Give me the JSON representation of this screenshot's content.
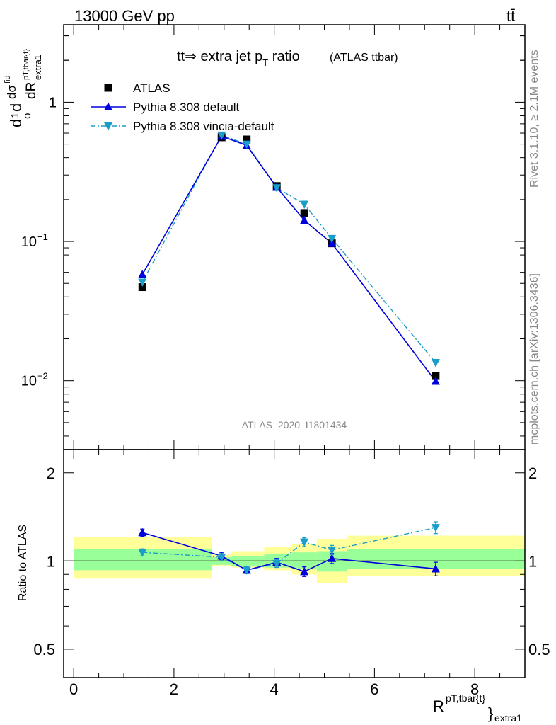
{
  "header": {
    "energy_label": "13000 GeV pp",
    "process_label": "tt̄"
  },
  "side_labels": {
    "rivet": "Rivet 3.1.10, ≥ 2.1M events",
    "mcplots": "mcplots.cern.ch [arXiv:1306.3436]"
  },
  "main_plot": {
    "title": "tt̄→ extra jet pT ratio",
    "title_parts": {
      "pre": "tt",
      "arrow": "⇒",
      "mid": " extra jet p",
      "sub": "T",
      "post": " ratio"
    },
    "subtitle": "(ATLAS ttbar)",
    "ylabel_parts": {
      "num": "1",
      "den": "σ",
      "d": "d",
      "dsigma": "dσ",
      "fid": "fid",
      "dR": "dR",
      "sup": "pT,tbar{t}",
      "sub": "extra1"
    },
    "watermark": "ATLAS_2020_I1801434",
    "ytick_labels": {
      "1": "1",
      "e-1_base": "10",
      "e-1_exp": "−1",
      "e-2_base": "10",
      "e-2_exp": "−2"
    }
  },
  "ratio_plot": {
    "ylabel": "Ratio to ATLAS",
    "ytick_labels": {
      "left": [
        "2",
        "1",
        "0.5"
      ],
      "right": [
        "2",
        "1",
        "0.5"
      ]
    }
  },
  "x_axis": {
    "tick_labels": [
      "0",
      "2",
      "4",
      "6",
      "8"
    ],
    "label_main": "R",
    "label_sup": "pT,tbar{t}",
    "label_brace": "}",
    "label_sub": "extra1"
  },
  "legend": [
    {
      "name": "ATLAS",
      "color": "#000000",
      "marker": "square"
    },
    {
      "name": "Pythia 8.308 default",
      "color": "#0000dd",
      "marker": "triangle-up"
    },
    {
      "name": "Pythia 8.308 vincia-default",
      "color": "#1a9dc8",
      "marker": "triangle-down"
    }
  ],
  "chart_data": {
    "type": "scatter",
    "x_range": [
      -0.2,
      9.0
    ],
    "main_ylim": [
      0.0032,
      3.6
    ],
    "main_log_y": true,
    "ratio_ylim": [
      0.4,
      2.4
    ],
    "ratio_log_y": true,
    "bins": [
      {
        "xlo": 0.0,
        "xhi": 2.75
      },
      {
        "xlo": 2.75,
        "xhi": 3.15
      },
      {
        "xlo": 3.15,
        "xhi": 3.8
      },
      {
        "xlo": 3.8,
        "xhi": 4.35
      },
      {
        "xlo": 4.35,
        "xhi": 4.85
      },
      {
        "xlo": 4.85,
        "xhi": 5.45
      },
      {
        "xlo": 5.45,
        "xhi": 9.0
      }
    ],
    "band_inner": [
      {
        "lo": 0.93,
        "hi": 1.1
      },
      {
        "lo": 0.97,
        "hi": 1.03
      },
      {
        "lo": 0.96,
        "hi": 1.04
      },
      {
        "lo": 0.95,
        "hi": 1.06
      },
      {
        "lo": 0.94,
        "hi": 1.07
      },
      {
        "lo": 0.92,
        "hi": 1.08
      },
      {
        "lo": 0.94,
        "hi": 1.1
      }
    ],
    "band_outer": [
      {
        "lo": 0.87,
        "hi": 1.21
      },
      {
        "lo": 0.96,
        "hi": 1.05
      },
      {
        "lo": 0.95,
        "hi": 1.08
      },
      {
        "lo": 0.93,
        "hi": 1.12
      },
      {
        "lo": 0.9,
        "hi": 1.14
      },
      {
        "lo": 0.84,
        "hi": 1.19
      },
      {
        "lo": 0.89,
        "hi": 1.22
      }
    ],
    "series": [
      {
        "name": "ATLAS",
        "x": [
          1.37,
          2.95,
          3.45,
          4.05,
          4.6,
          5.15,
          7.22
        ],
        "y": [
          0.047,
          0.56,
          0.54,
          0.25,
          0.16,
          0.097,
          0.0108
        ]
      },
      {
        "name": "Pythia 8.308 default",
        "x": [
          1.37,
          2.95,
          3.45,
          4.05,
          4.6,
          5.15,
          7.22
        ],
        "y": [
          0.058,
          0.57,
          0.49,
          0.245,
          0.142,
          0.097,
          0.0099
        ],
        "ratio": [
          1.25,
          1.04,
          0.93,
          0.99,
          0.92,
          1.02,
          0.94
        ],
        "ratio_err": [
          0.035,
          0.03,
          0.025,
          0.03,
          0.035,
          0.04,
          0.05
        ]
      },
      {
        "name": "Pythia 8.308 vincia-default",
        "x": [
          1.37,
          2.95,
          3.45,
          4.05,
          4.6,
          5.15,
          7.22
        ],
        "y": [
          0.051,
          0.58,
          0.5,
          0.243,
          0.185,
          0.105,
          0.0135
        ],
        "ratio": [
          1.07,
          1.03,
          0.93,
          0.98,
          1.16,
          1.09,
          1.3
        ],
        "ratio_err": [
          0.03,
          0.03,
          0.025,
          0.03,
          0.04,
          0.04,
          0.06
        ]
      }
    ]
  }
}
